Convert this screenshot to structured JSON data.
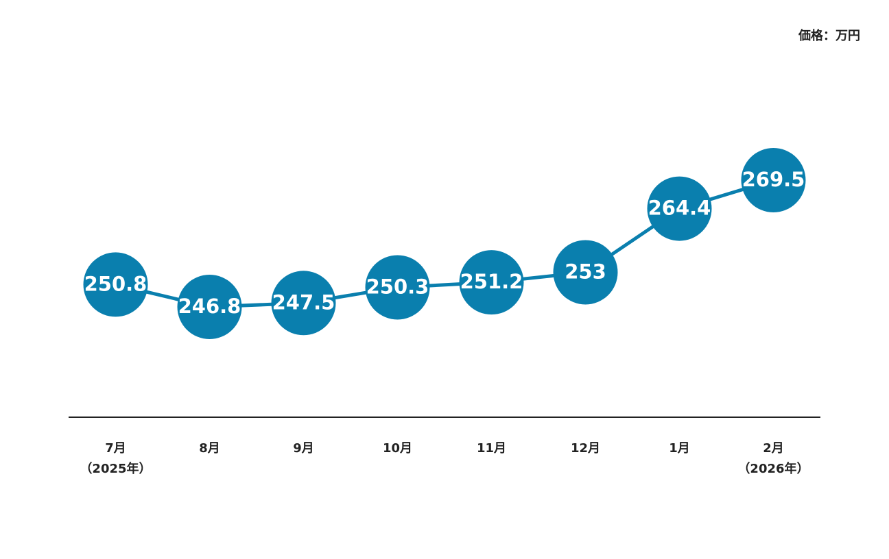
{
  "chart_data": {
    "type": "line",
    "unit_label": "価格：万円",
    "categories": [
      "7月\n（2025年）",
      "8月",
      "9月",
      "10月",
      "11月",
      "12月",
      "1月",
      "2月\n（2026年）"
    ],
    "values": [
      250.8,
      246.8,
      247.5,
      250.3,
      251.2,
      253.0,
      264.4,
      269.5
    ],
    "color": "#0a7fae"
  }
}
